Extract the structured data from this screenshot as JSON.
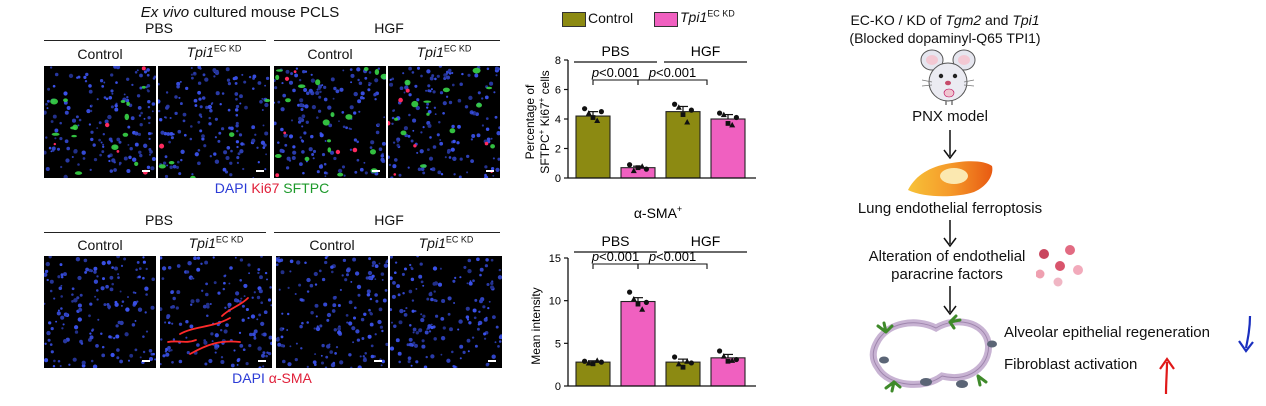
{
  "panel_a": {
    "title_italic": "Ex vivo",
    "title_rest": " cultured mouse PCLS",
    "group_pbs": "PBS",
    "group_hgf": "HGF",
    "col_control": "Control",
    "col_kd_gene": "Tpi1",
    "col_kd_sup": "EC KD",
    "stain_dapi": "DAPI",
    "stain_ki67": "Ki67",
    "stain_sftpc": "SFTPC"
  },
  "panel_b": {
    "group_pbs": "PBS",
    "group_hgf": "HGF",
    "col_control": "Control",
    "col_kd_gene": "Tpi1",
    "col_kd_sup": "EC KD",
    "stain_dapi": "DAPI",
    "stain_sma": "α-SMA"
  },
  "legend": {
    "control": "Control",
    "kd_gene": "Tpi1",
    "kd_sup": "EC KD",
    "control_color": "#8c8a12",
    "kd_color": "#f060c0"
  },
  "chart_data": [
    {
      "type": "bar",
      "group_labels": [
        "PBS",
        "HGF"
      ],
      "categories": [
        "PBS Control",
        "PBS Tpi1 EC KD",
        "HGF Control",
        "HGF Tpi1 EC KD"
      ],
      "values": [
        4.2,
        0.7,
        4.5,
        4.0
      ],
      "errors": [
        0.3,
        0.1,
        0.35,
        0.3
      ],
      "points": [
        [
          4.7,
          4.4,
          4.1,
          3.9,
          4.5
        ],
        [
          0.9,
          0.5,
          0.7,
          0.8,
          0.6
        ],
        [
          5.0,
          4.8,
          4.3,
          3.8,
          4.6
        ],
        [
          4.4,
          4.3,
          3.7,
          3.6,
          4.1
        ]
      ],
      "ylabel_line1": "Percentage of",
      "ylabel_line2_pre": "SFTPC",
      "ylabel_line2_mid": " Ki67",
      "ylabel_line2_post": " cells",
      "ylabel_sup": "+",
      "ylim": [
        0,
        8
      ],
      "yticks": [
        "0",
        "2",
        "4",
        "6",
        "8"
      ],
      "annotations": [
        "p<0.001",
        "p<0.001"
      ]
    },
    {
      "type": "bar",
      "title_main": "α-SMA",
      "title_sup": "+",
      "group_labels": [
        "PBS",
        "HGF"
      ],
      "categories": [
        "PBS Control",
        "PBS Tpi1 EC KD",
        "HGF Control",
        "HGF Tpi1 EC KD"
      ],
      "values": [
        2.8,
        9.9,
        2.8,
        3.3
      ],
      "errors": [
        0.15,
        0.45,
        0.35,
        0.4
      ],
      "points": [
        [
          2.9,
          2.7,
          2.6,
          3.0,
          2.8
        ],
        [
          11.0,
          10.2,
          9.6,
          9.0,
          9.8
        ],
        [
          3.4,
          2.6,
          2.2,
          2.9,
          2.7
        ],
        [
          4.1,
          3.5,
          2.9,
          3.0,
          3.1
        ]
      ],
      "ylabel": "Mean intensity",
      "ylim": [
        0,
        15
      ],
      "yticks": [
        "0",
        "5",
        "10",
        "15"
      ],
      "annotations": [
        "p<0.001",
        "p<0.001"
      ]
    }
  ],
  "flow": {
    "header_l1_pre": "EC-KO / KD of ",
    "header_l1_g1": "Tgm2",
    "header_l1_and": " and ",
    "header_l1_g2": "Tpi1",
    "header_l2": "(Blocked dopaminyl-Q65 TPI1)",
    "step1": "PNX model",
    "step2": "Lung endothelial ferroptosis",
    "step3_l1": "Alteration of endothelial",
    "step3_l2": "paracrine factors",
    "out1": "Alveolar epithelial regeneration",
    "out2": "Fibroblast activation",
    "down_color": "#1a2fbf",
    "up_color": "#e01818"
  }
}
